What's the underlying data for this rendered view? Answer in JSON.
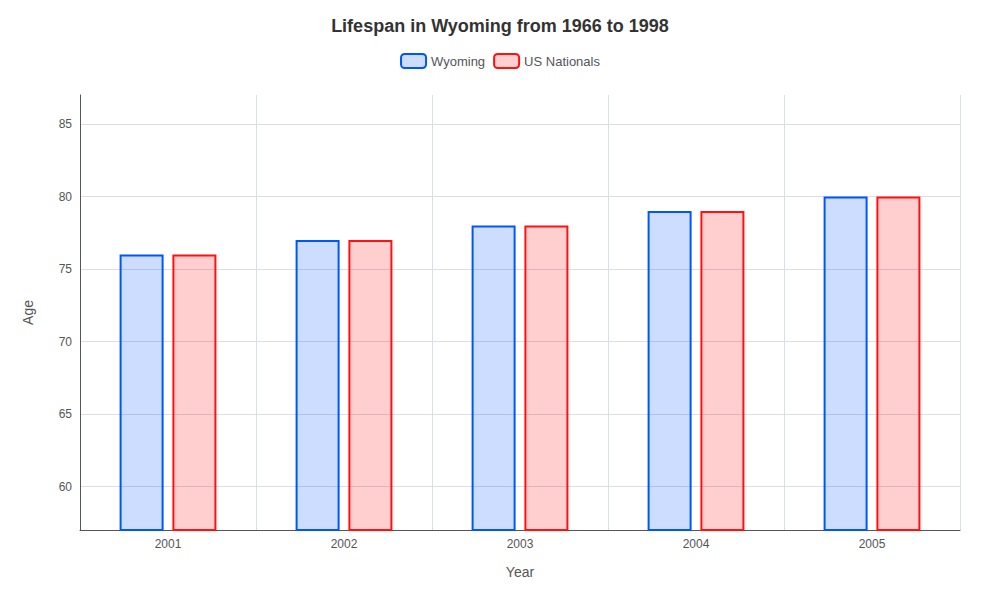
{
  "chart_data": {
    "type": "bar",
    "title": "Lifespan in Wyoming from 1966 to 1998",
    "x_label": "Year",
    "y_label": "Age",
    "categories": [
      "2001",
      "2002",
      "2003",
      "2004",
      "2005"
    ],
    "series": [
      {
        "name": "Wyoming",
        "color": "#0055ff",
        "values": [
          76,
          77,
          78,
          79,
          80
        ]
      },
      {
        "name": "US Nationals",
        "color": "#ff1111",
        "values": [
          76,
          77,
          78,
          79,
          80
        ]
      }
    ],
    "ylim": [
      57,
      87
    ],
    "yticks": [
      60,
      65,
      70,
      75,
      80,
      85
    ],
    "grid": true,
    "legend": "top"
  }
}
